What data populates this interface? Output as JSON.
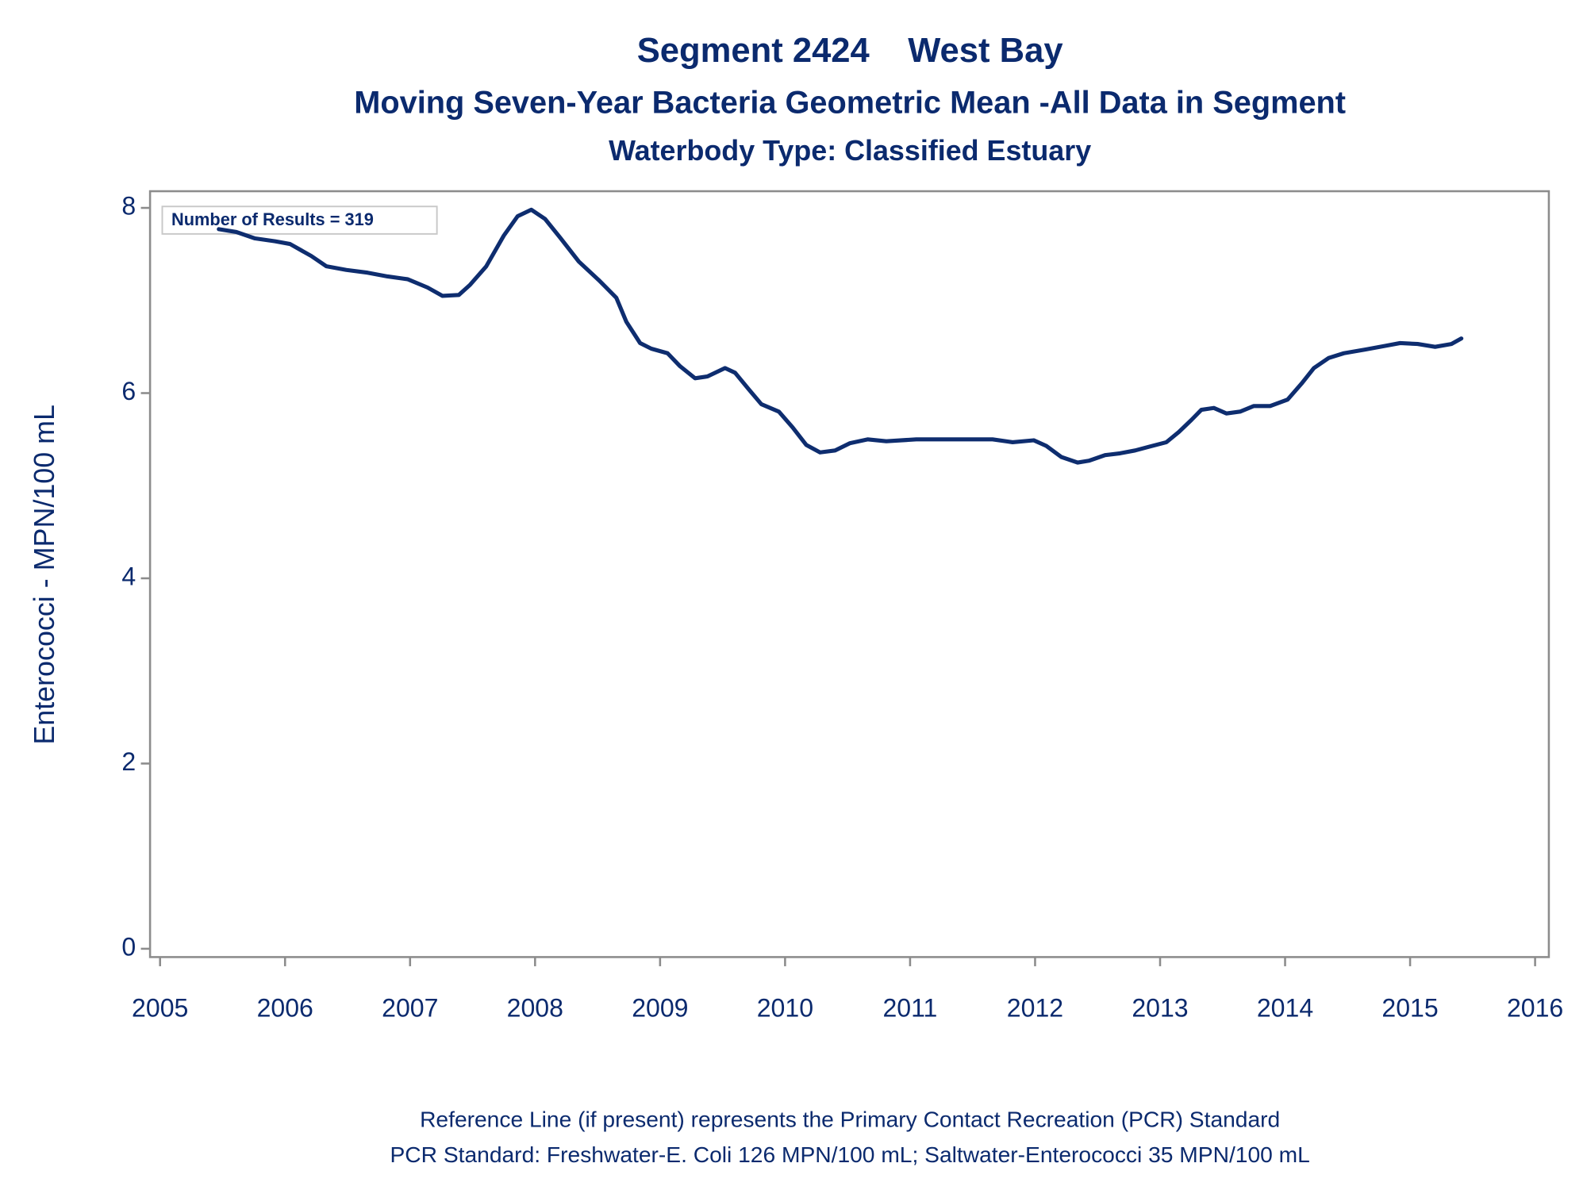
{
  "chart_data": {
    "type": "line",
    "title": "Segment 2424    West Bay",
    "subtitle": "Moving Seven-Year Bacteria Geometric Mean -All Data in Segment",
    "subtitle2": "Waterbody Type: Classified Estuary",
    "y_label": "Enterococci - MPN/100 mL",
    "annotation": "Number of Results = 319",
    "footnotes": [
      "Reference Line (if present) represents the Primary Contact Recreation (PCR) Standard",
      "PCR Standard: Freshwater-E. Coli 126 MPN/100 mL; Saltwater-Enterococci 35 MPN/100 mL"
    ],
    "color": "#0e2d6f",
    "x": [
      2005.47,
      2005.61,
      2005.76,
      2005.92,
      2006.04,
      2006.21,
      2006.33,
      2006.49,
      2006.66,
      2006.82,
      2006.98,
      2007.14,
      2007.26,
      2007.39,
      2007.48,
      2007.61,
      2007.75,
      2007.86,
      2007.97,
      2008.08,
      2008.2,
      2008.35,
      2008.51,
      2008.65,
      2008.73,
      2008.84,
      2008.93,
      2009.06,
      2009.16,
      2009.28,
      2009.38,
      2009.52,
      2009.6,
      2009.71,
      2009.81,
      2009.95,
      2010.06,
      2010.17,
      2010.28,
      2010.4,
      2010.52,
      2010.66,
      2010.81,
      2011.05,
      2011.38,
      2011.66,
      2011.82,
      2011.99,
      2012.09,
      2012.21,
      2012.34,
      2012.43,
      2012.56,
      2012.68,
      2012.8,
      2012.91,
      2013.05,
      2013.15,
      2013.25,
      2013.33,
      2013.43,
      2013.53,
      2013.64,
      2013.75,
      2013.88,
      2014.02,
      2014.13,
      2014.23,
      2014.35,
      2014.47,
      2014.64,
      2014.8,
      2014.92,
      2015.06,
      2015.2,
      2015.33,
      2015.41
    ],
    "values": [
      7.77,
      7.74,
      7.67,
      7.64,
      7.61,
      7.48,
      7.37,
      7.33,
      7.3,
      7.26,
      7.23,
      7.14,
      7.05,
      7.06,
      7.17,
      7.37,
      7.7,
      7.91,
      7.98,
      7.88,
      7.68,
      7.42,
      7.22,
      7.03,
      6.77,
      6.54,
      6.48,
      6.43,
      6.29,
      6.16,
      6.18,
      6.27,
      6.22,
      6.04,
      5.88,
      5.8,
      5.63,
      5.44,
      5.36,
      5.38,
      5.46,
      5.5,
      5.48,
      5.5,
      5.5,
      5.5,
      5.47,
      5.49,
      5.43,
      5.31,
      5.25,
      5.27,
      5.33,
      5.35,
      5.38,
      5.42,
      5.47,
      5.58,
      5.71,
      5.82,
      5.84,
      5.78,
      5.8,
      5.86,
      5.86,
      5.93,
      6.1,
      6.27,
      6.38,
      6.43,
      6.47,
      6.51,
      6.54,
      6.53,
      6.5,
      6.53,
      6.59
    ],
    "xlim": [
      2004.92,
      2016.11
    ],
    "xticks": [
      2005,
      2006,
      2007,
      2008,
      2009,
      2010,
      2011,
      2012,
      2013,
      2014,
      2015,
      2016
    ],
    "ylim": [
      -0.09,
      8.18
    ],
    "yticks": [
      0,
      2,
      4,
      6,
      8
    ]
  }
}
